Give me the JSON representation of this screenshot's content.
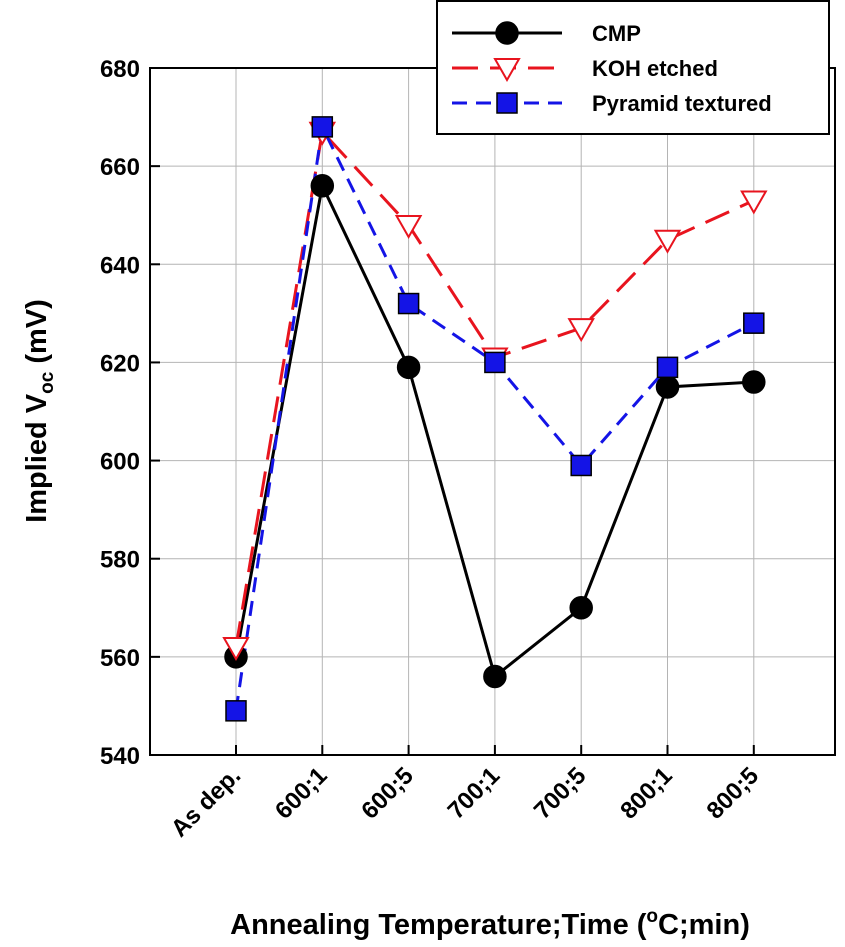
{
  "chart_data": {
    "type": "line",
    "categories": [
      "As dep.",
      "600;1",
      "600;5",
      "700;1",
      "700;5",
      "800;1",
      "800;5"
    ],
    "xlabel_main": "Annealing Temperature;Time (",
    "xlabel_sup": "o",
    "xlabel_end": "C;min)",
    "ylabel_main": "Implied V",
    "ylabel_sub": "oc",
    "ylabel_end": " (mV)",
    "ylim": [
      540,
      680
    ],
    "yticks": [
      540,
      560,
      580,
      600,
      620,
      640,
      660,
      680
    ],
    "grid": true,
    "legend_position": "top-right",
    "series": [
      {
        "name": "CMP",
        "values": [
          560,
          656,
          619,
          556,
          570,
          615,
          616
        ],
        "color": "#000000",
        "marker": "circle",
        "dash": "solid"
      },
      {
        "name": "KOH etched",
        "values": [
          562,
          667,
          648,
          621,
          627,
          645,
          653
        ],
        "color": "#e8141e",
        "marker": "triangle-down-open",
        "dash": "long-dash"
      },
      {
        "name": "Pyramid textured",
        "values": [
          549,
          668,
          632,
          620,
          599,
          619,
          628
        ],
        "color": "#1414e6",
        "marker": "square",
        "dash": "dash"
      }
    ]
  }
}
